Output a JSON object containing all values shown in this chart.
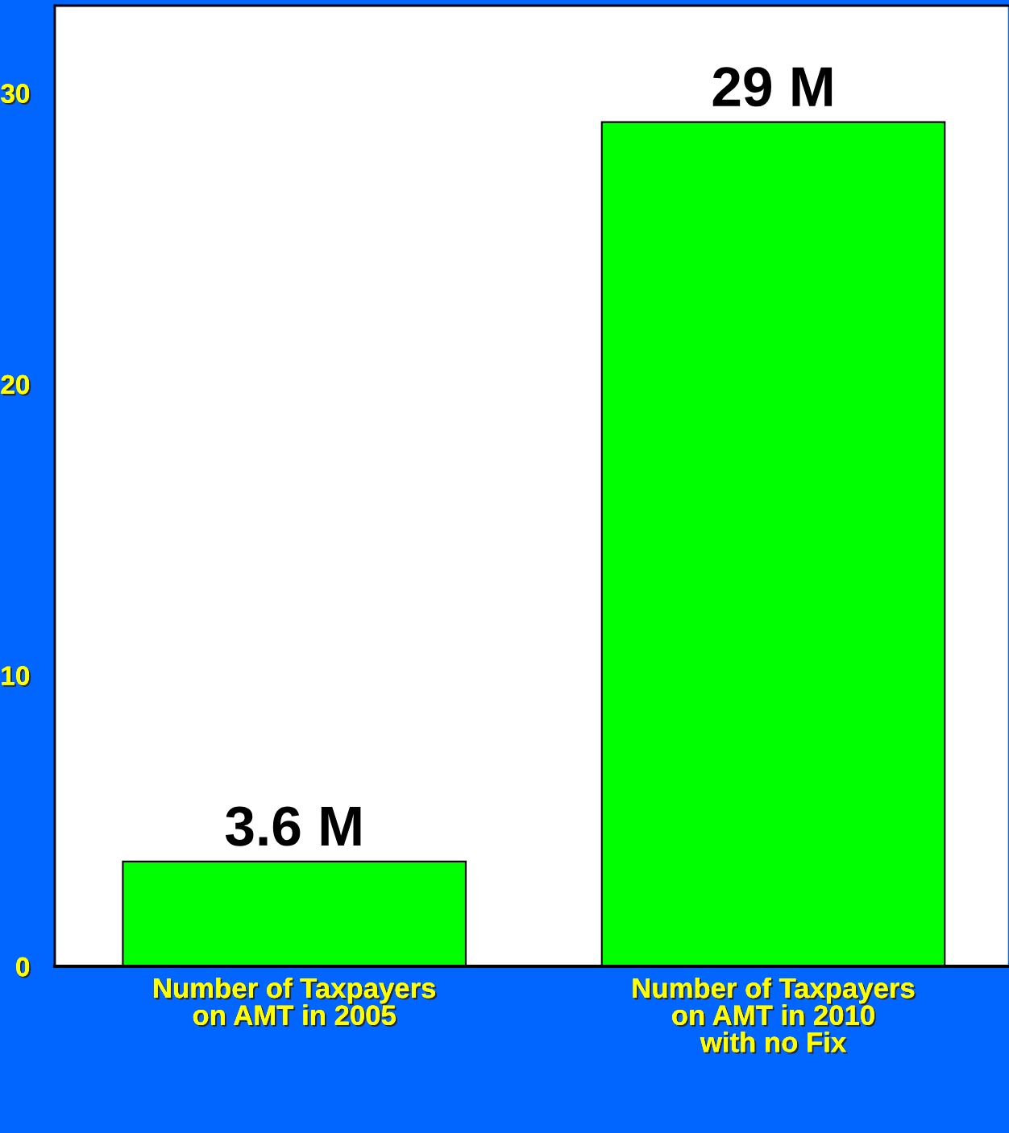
{
  "chart_data": {
    "type": "bar",
    "categories": [
      "Number of Taxpayers\non AMT in 2005",
      "Number of Taxpayers\non AMT in 2010\nwith no Fix"
    ],
    "values": [
      3.6,
      29
    ],
    "value_labels": [
      "3.6 M",
      "29 M"
    ],
    "color": "#00ff00",
    "ylim": [
      0,
      33
    ],
    "yticks": [
      0,
      10,
      20,
      30
    ],
    "grid": false,
    "legend": false
  }
}
